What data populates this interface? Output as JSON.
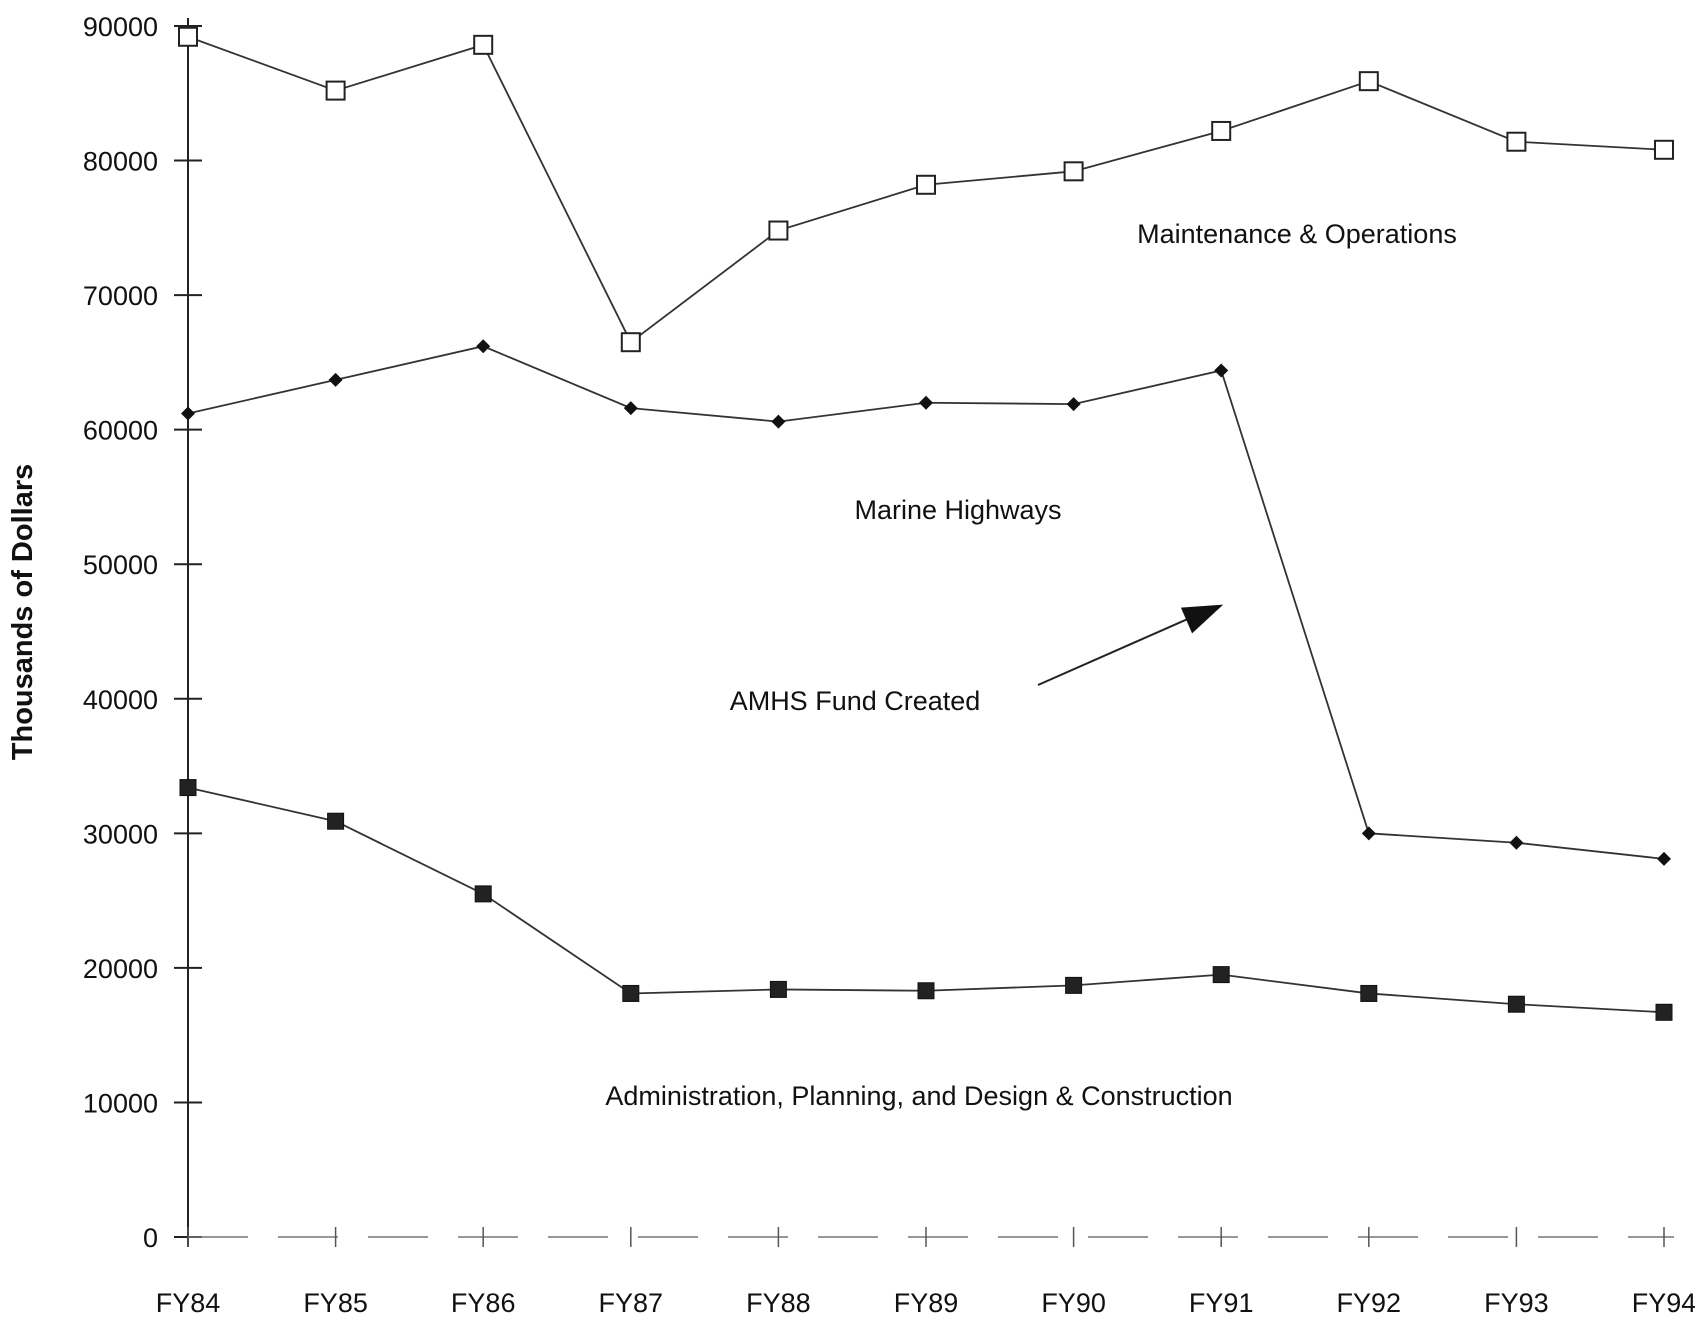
{
  "chart_data": {
    "type": "line",
    "ylabel": "Thousands of Dollars",
    "ylim": [
      0,
      90000
    ],
    "yticks": [
      "0",
      "10000",
      "20000",
      "30000",
      "40000",
      "50000",
      "60000",
      "70000",
      "80000",
      "90000"
    ],
    "categories": [
      "FY84",
      "FY85",
      "FY86",
      "FY87",
      "FY88",
      "FY89",
      "FY90",
      "FY91",
      "FY92",
      "FY93",
      "FY94"
    ],
    "series": [
      {
        "name": "Maintenance & Operations",
        "marker": "open-square",
        "values": [
          89200,
          85200,
          88600,
          66500,
          74800,
          78200,
          79200,
          82200,
          85900,
          81400,
          80800
        ]
      },
      {
        "name": "Marine Highways",
        "marker": "filled-diamond",
        "values": [
          61200,
          63700,
          66200,
          61600,
          60600,
          62000,
          61900,
          64400,
          30000,
          29300,
          28100
        ]
      },
      {
        "name": "Administration, Planning, and Design & Construction",
        "marker": "filled-square",
        "values": [
          33400,
          30900,
          25500,
          18100,
          18400,
          18300,
          18700,
          19500,
          18100,
          17300,
          16700
        ]
      }
    ],
    "annotations": [
      {
        "text": "AMHS Fund Created",
        "arrow_to_category": "FY91",
        "arrow_to_value": 47000
      }
    ],
    "grid": false,
    "legend": "none"
  }
}
